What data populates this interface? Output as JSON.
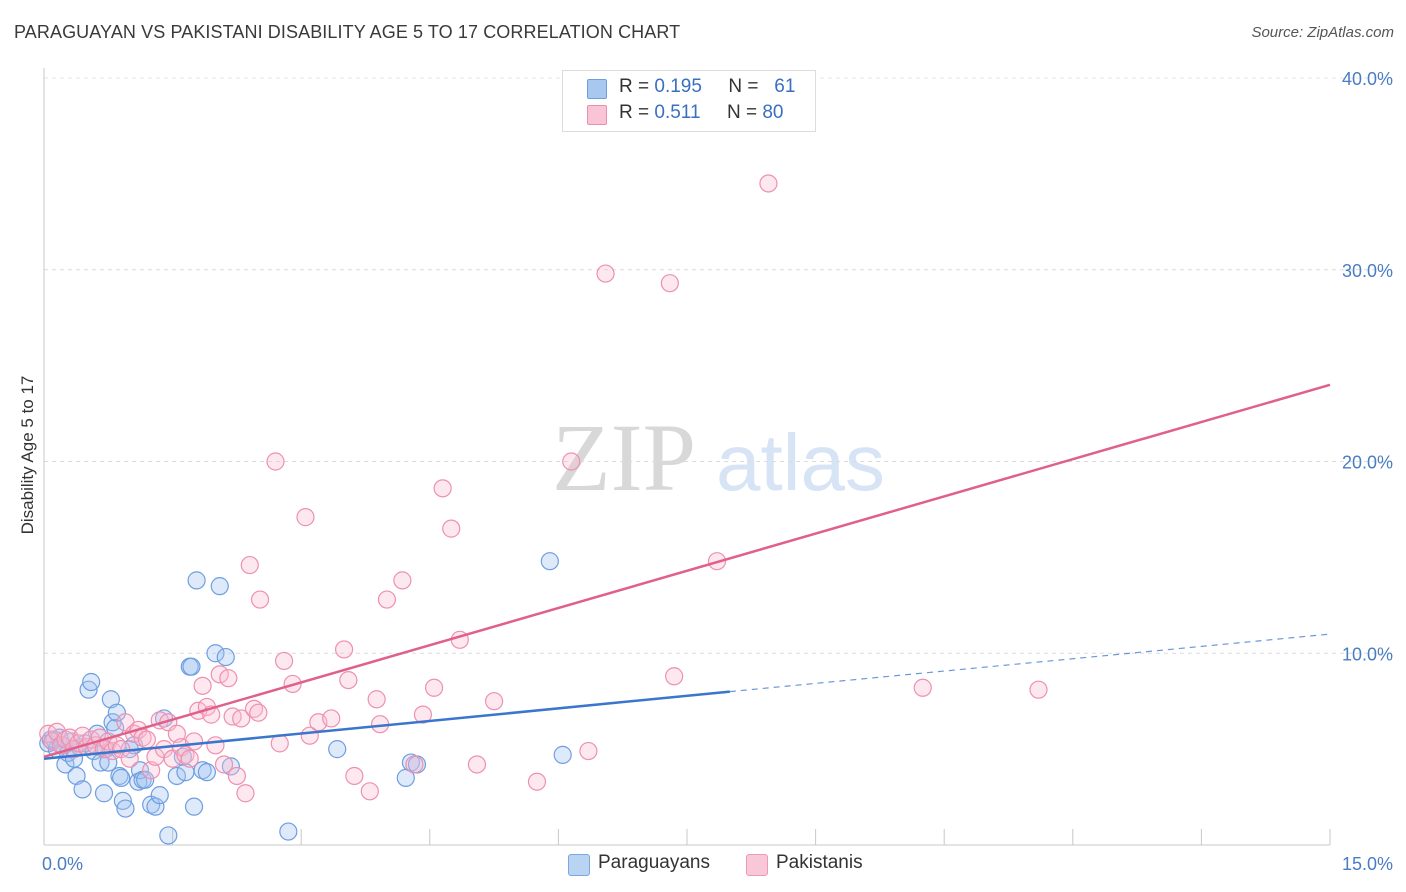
{
  "title": "PARAGUAYAN VS PAKISTANI DISABILITY AGE 5 TO 17 CORRELATION CHART",
  "source": "Source: ZipAtlas.com",
  "watermark": {
    "zip": "ZIP",
    "atlas": "atlas"
  },
  "legend": {
    "rows": [
      {
        "r_label": "R =",
        "r_value": "0.195",
        "n_label": "N =",
        "n_value": "61",
        "color": "#a9c8f0",
        "border": "#6f9ee0"
      },
      {
        "r_label": "R =",
        "r_value": "0.511",
        "n_label": "N =",
        "n_value": "80",
        "color": "#f9c4d5",
        "border": "#ec8fae"
      }
    ]
  },
  "bottom_legend": [
    {
      "label": "Paraguayans",
      "color": "#b9d3f3",
      "border": "#7aa6e2"
    },
    {
      "label": "Pakistanis",
      "color": "#f9c8d8",
      "border": "#ee9ab6"
    }
  ],
  "chart_data": {
    "type": "scatter",
    "title": "PARAGUAYAN VS PAKISTANI DISABILITY AGE 5 TO 17 CORRELATION CHART",
    "xlabel": "",
    "ylabel": "Disability Age 5 to 17",
    "xlim": [
      0,
      15
    ],
    "ylim": [
      0,
      40
    ],
    "x_tick_labels": [
      "0.0%",
      "15.0%"
    ],
    "y_ticks": [
      10,
      20,
      30,
      40
    ],
    "y_tick_labels": [
      "10.0%",
      "20.0%",
      "30.0%",
      "40.0%"
    ],
    "grid": true,
    "series": [
      {
        "name": "Paraguayans",
        "color": "#6f9ee0",
        "fill": "rgba(160,195,240,0.35)",
        "trend": {
          "x0": 0,
          "y0": 4.5,
          "x1": 8.0,
          "y1": 8.0,
          "dashed_to_x": 15.0,
          "dashed_to_y": 11.0,
          "color": "#3a76cc"
        },
        "points": [
          [
            0.05,
            5.3
          ],
          [
            0.12,
            5.5
          ],
          [
            0.15,
            5.0
          ],
          [
            0.18,
            5.6
          ],
          [
            0.22,
            5.2
          ],
          [
            0.25,
            4.2
          ],
          [
            0.28,
            4.8
          ],
          [
            0.32,
            5.4
          ],
          [
            0.35,
            4.5
          ],
          [
            0.38,
            3.6
          ],
          [
            0.42,
            5.1
          ],
          [
            0.45,
            2.9
          ],
          [
            0.48,
            5.3
          ],
          [
            0.52,
            8.1
          ],
          [
            0.55,
            8.5
          ],
          [
            0.58,
            4.9
          ],
          [
            0.62,
            5.8
          ],
          [
            0.66,
            4.3
          ],
          [
            0.7,
            2.7
          ],
          [
            0.72,
            5.0
          ],
          [
            0.75,
            4.3
          ],
          [
            0.78,
            7.6
          ],
          [
            0.8,
            6.4
          ],
          [
            0.83,
            6.1
          ],
          [
            0.85,
            6.9
          ],
          [
            0.88,
            3.6
          ],
          [
            0.9,
            3.5
          ],
          [
            0.92,
            2.3
          ],
          [
            0.95,
            1.9
          ],
          [
            1.0,
            5.0
          ],
          [
            1.05,
            5.2
          ],
          [
            1.1,
            3.3
          ],
          [
            1.12,
            3.9
          ],
          [
            1.15,
            3.4
          ],
          [
            1.18,
            3.4
          ],
          [
            1.25,
            2.1
          ],
          [
            1.3,
            2.0
          ],
          [
            1.35,
            2.6
          ],
          [
            1.4,
            6.6
          ],
          [
            1.45,
            0.5
          ],
          [
            1.55,
            3.6
          ],
          [
            1.62,
            4.6
          ],
          [
            1.65,
            3.8
          ],
          [
            1.7,
            9.3
          ],
          [
            1.72,
            9.3
          ],
          [
            1.75,
            2.0
          ],
          [
            1.78,
            13.8
          ],
          [
            1.85,
            3.9
          ],
          [
            1.9,
            3.8
          ],
          [
            2.0,
            10.0
          ],
          [
            2.05,
            13.5
          ],
          [
            2.12,
            9.8
          ],
          [
            2.18,
            4.1
          ],
          [
            2.85,
            0.7
          ],
          [
            3.42,
            5.0
          ],
          [
            4.22,
            3.5
          ],
          [
            4.28,
            4.3
          ],
          [
            4.35,
            4.2
          ],
          [
            5.9,
            14.8
          ],
          [
            6.05,
            4.7
          ],
          [
            0.08,
            5.5
          ]
        ]
      },
      {
        "name": "Pakistanis",
        "color": "#ee90b0",
        "fill": "rgba(248,190,210,0.35)",
        "trend": {
          "x0": 0,
          "y0": 4.6,
          "x1": 15.0,
          "y1": 24.0,
          "color": "#e0608a"
        },
        "points": [
          [
            0.05,
            5.8
          ],
          [
            0.1,
            5.4
          ],
          [
            0.15,
            5.9
          ],
          [
            0.2,
            5.2
          ],
          [
            0.25,
            5.5
          ],
          [
            0.3,
            5.6
          ],
          [
            0.35,
            5.0
          ],
          [
            0.4,
            5.3
          ],
          [
            0.45,
            5.7
          ],
          [
            0.5,
            5.1
          ],
          [
            0.55,
            5.5
          ],
          [
            0.6,
            5.2
          ],
          [
            0.65,
            5.6
          ],
          [
            0.7,
            5.0
          ],
          [
            0.75,
            5.4
          ],
          [
            0.8,
            4.9
          ],
          [
            0.85,
            5.2
          ],
          [
            0.9,
            5.0
          ],
          [
            0.95,
            6.4
          ],
          [
            1.0,
            4.5
          ],
          [
            1.05,
            5.8
          ],
          [
            1.1,
            6.0
          ],
          [
            1.15,
            5.6
          ],
          [
            1.2,
            5.5
          ],
          [
            1.25,
            3.9
          ],
          [
            1.3,
            4.6
          ],
          [
            1.35,
            6.5
          ],
          [
            1.4,
            5.0
          ],
          [
            1.45,
            6.4
          ],
          [
            1.5,
            4.5
          ],
          [
            1.55,
            5.8
          ],
          [
            1.6,
            5.1
          ],
          [
            1.65,
            4.7
          ],
          [
            1.7,
            4.5
          ],
          [
            1.75,
            5.4
          ],
          [
            1.8,
            7.0
          ],
          [
            1.85,
            8.3
          ],
          [
            1.9,
            7.2
          ],
          [
            1.95,
            6.8
          ],
          [
            2.0,
            5.2
          ],
          [
            2.05,
            8.9
          ],
          [
            2.1,
            4.2
          ],
          [
            2.15,
            8.7
          ],
          [
            2.2,
            6.7
          ],
          [
            2.25,
            3.6
          ],
          [
            2.3,
            6.6
          ],
          [
            2.35,
            2.7
          ],
          [
            2.4,
            14.6
          ],
          [
            2.45,
            7.1
          ],
          [
            2.5,
            6.9
          ],
          [
            2.52,
            12.8
          ],
          [
            2.7,
            20.0
          ],
          [
            2.75,
            5.3
          ],
          [
            2.8,
            9.6
          ],
          [
            2.9,
            8.4
          ],
          [
            3.05,
            17.1
          ],
          [
            3.1,
            5.7
          ],
          [
            3.2,
            6.4
          ],
          [
            3.35,
            6.6
          ],
          [
            3.5,
            10.2
          ],
          [
            3.55,
            8.6
          ],
          [
            3.62,
            3.6
          ],
          [
            3.8,
            2.8
          ],
          [
            3.88,
            7.6
          ],
          [
            3.92,
            6.3
          ],
          [
            4.0,
            12.8
          ],
          [
            4.18,
            13.8
          ],
          [
            4.32,
            4.2
          ],
          [
            4.42,
            6.8
          ],
          [
            4.55,
            8.2
          ],
          [
            4.65,
            18.6
          ],
          [
            4.75,
            16.5
          ],
          [
            4.85,
            10.7
          ],
          [
            5.05,
            4.2
          ],
          [
            5.25,
            7.5
          ],
          [
            5.75,
            3.3
          ],
          [
            6.15,
            20.0
          ],
          [
            6.35,
            4.9
          ],
          [
            6.55,
            29.8
          ],
          [
            7.3,
            29.3
          ]
        ],
        "extra_points": [
          [
            7.35,
            8.8
          ],
          [
            7.85,
            14.8
          ],
          [
            8.45,
            34.5
          ],
          [
            10.25,
            8.2
          ],
          [
            11.6,
            8.1
          ]
        ]
      }
    ]
  }
}
